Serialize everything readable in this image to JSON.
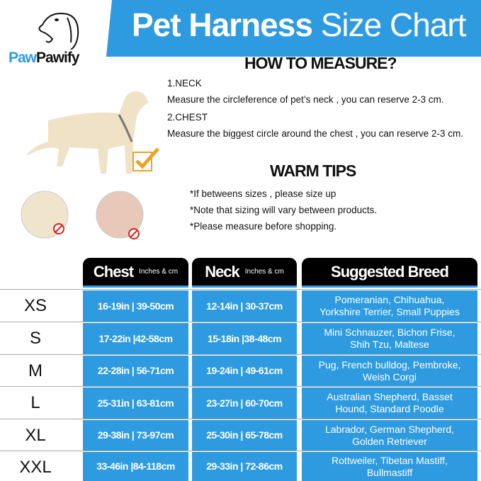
{
  "brand": {
    "name_part1": "Paw",
    "name_part2": "Pawify"
  },
  "banner": {
    "title_bold": "Pet Harness",
    "title_light": "Size Chart"
  },
  "measure": {
    "heading": "HOW TO MEASURE?",
    "neck_label": "1.NECK",
    "neck_text": "Measure the circleference of pet’s neck , you can reserve 2-3 cm.",
    "chest_label": "2.CHEST",
    "chest_text": "Measure the biggest circle around the chest , you can reserve 2-3 cm."
  },
  "tips": {
    "heading": "WARM TIPS",
    "items": [
      "*If betweens sizes , please size up",
      "*Note that sizing will vary between products.",
      "*Please measure before shopping."
    ]
  },
  "colors": {
    "accent": "#2e9be0",
    "header": "#000000",
    "check": "#f0a020",
    "no": "#e02020"
  },
  "table": {
    "headers": {
      "chest": "Chest",
      "chest_unit": "Inches & cm",
      "neck": "Neck",
      "neck_unit": "Inches & cm",
      "breed": "Suggested Breed"
    },
    "rows": [
      {
        "size": "XS",
        "chest": "16-19in | 39-50cm",
        "neck": "12-14in | 30-37cm",
        "breed": "Pomeranian, Chihuahua, Yorkshire Terrier, Small Puppies"
      },
      {
        "size": "S",
        "chest": "17-22in |42-58cm",
        "neck": "15-18in |38-48cm",
        "breed": "Mini Schnauzer, Bichon Frise, Shih Tzu, Maltese"
      },
      {
        "size": "M",
        "chest": "22-28in | 56-71cm",
        "neck": "19-24in | 49-61cm",
        "breed": "Pug, French bulldog, Pembroke, Weish Corgi"
      },
      {
        "size": "L",
        "chest": "25-31in | 63-81cm",
        "neck": "23-27in | 60-70cm",
        "breed": "Australian Shepherd, Basset Hound, Standard Poodle"
      },
      {
        "size": "XL",
        "chest": "29-38in | 73-97cm",
        "neck": "25-30in | 65-78cm",
        "breed": "Labrador, German Shepherd, Golden Retriever"
      },
      {
        "size": "XXL",
        "chest": "33-46in |84-118cm",
        "neck": "29-33in | 72-86cm",
        "breed": "Rottweiler, Tibetan Mastiff, Bullmastiff"
      }
    ]
  }
}
